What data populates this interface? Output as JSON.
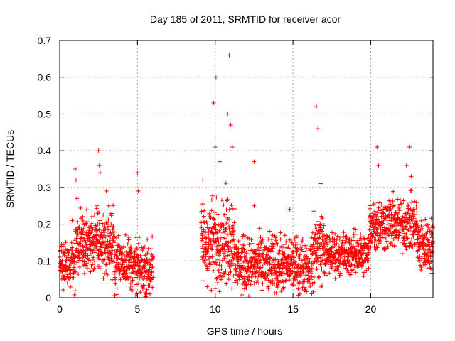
{
  "chart_data": {
    "type": "scatter",
    "title": "Day 185 of 2011, SRMTID for receiver acor",
    "xlabel": "GPS time / hours",
    "ylabel": "SRMTID / TECUs",
    "xlim": [
      0,
      24
    ],
    "ylim": [
      0,
      0.7
    ],
    "x_ticks": [
      0,
      5,
      10,
      15,
      20
    ],
    "y_ticks": [
      0,
      0.1,
      0.2,
      0.3,
      0.4,
      0.5,
      0.6,
      0.7
    ],
    "x_tick_labels": [
      "0",
      "5",
      "10",
      "15",
      "20"
    ],
    "y_tick_labels": [
      "0",
      "0.1",
      "0.2",
      "0.3",
      "0.4",
      "0.5",
      "0.6",
      "0.7"
    ],
    "grid": true,
    "marker": "+",
    "color": "#ff0000",
    "series": [
      {
        "name": "SRMTID",
        "segments": [
          {
            "x_start": 0.0,
            "x_end": 6.0,
            "n": 700
          },
          {
            "x_start": 9.1,
            "x_end": 24.0,
            "n": 1700
          }
        ],
        "points": [
          [
            0.0,
            0.125
          ],
          [
            0.1,
            0.14
          ],
          [
            0.2,
            0.06
          ],
          [
            0.3,
            0.05
          ],
          [
            0.5,
            0.04
          ],
          [
            0.8,
            0.21
          ],
          [
            1.0,
            0.35
          ],
          [
            1.05,
            0.32
          ],
          [
            1.1,
            0.27
          ],
          [
            1.3,
            0.16
          ],
          [
            1.5,
            0.1
          ],
          [
            2.0,
            0.13
          ],
          [
            2.4,
            0.25
          ],
          [
            2.5,
            0.4
          ],
          [
            2.55,
            0.36
          ],
          [
            2.6,
            0.34
          ],
          [
            3.0,
            0.29
          ],
          [
            3.3,
            0.2
          ],
          [
            3.5,
            0.15
          ],
          [
            4.0,
            0.12
          ],
          [
            4.5,
            0.08
          ],
          [
            5.0,
            0.34
          ],
          [
            5.05,
            0.29
          ],
          [
            5.5,
            0.07
          ],
          [
            5.8,
            0.01
          ],
          [
            9.2,
            0.32
          ],
          [
            9.5,
            0.2
          ],
          [
            9.9,
            0.53
          ],
          [
            10.0,
            0.41
          ],
          [
            10.05,
            0.6
          ],
          [
            10.3,
            0.37
          ],
          [
            10.8,
            0.5
          ],
          [
            10.9,
            0.66
          ],
          [
            11.0,
            0.47
          ],
          [
            11.1,
            0.41
          ],
          [
            11.5,
            0.12
          ],
          [
            12.0,
            0.07
          ],
          [
            12.5,
            0.37
          ],
          [
            12.5,
            0.25
          ],
          [
            13.0,
            0.11
          ],
          [
            14.0,
            0.09
          ],
          [
            14.8,
            0.24
          ],
          [
            15.5,
            0.13
          ],
          [
            16.0,
            0.07
          ],
          [
            16.5,
            0.52
          ],
          [
            16.6,
            0.46
          ],
          [
            16.8,
            0.31
          ],
          [
            17.0,
            0.17
          ],
          [
            18.0,
            0.12
          ],
          [
            19.0,
            0.14
          ],
          [
            20.0,
            0.16
          ],
          [
            20.4,
            0.41
          ],
          [
            20.5,
            0.36
          ],
          [
            21.0,
            0.24
          ],
          [
            21.5,
            0.2
          ],
          [
            22.0,
            0.2
          ],
          [
            22.3,
            0.36
          ],
          [
            22.5,
            0.41
          ],
          [
            22.6,
            0.33
          ],
          [
            23.0,
            0.15
          ],
          [
            23.5,
            0.09
          ],
          [
            24.0,
            0.19
          ]
        ]
      }
    ]
  }
}
